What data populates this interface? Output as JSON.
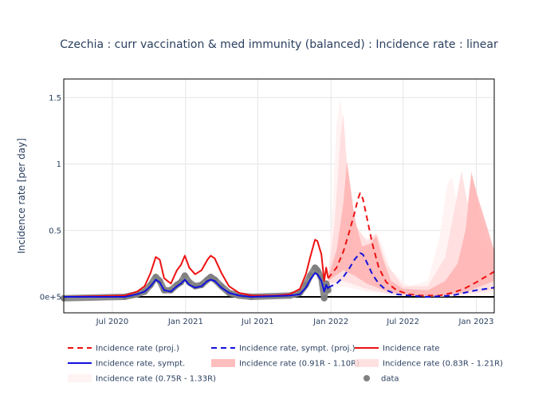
{
  "chart_data": {
    "type": "line",
    "title": "Czechia : curr vaccination & med immunity (balanced) : Incidence rate : linear",
    "ylabel": "Incidence rate [per day]",
    "xlabel": "",
    "ylim": [
      -0.12,
      1.64
    ],
    "xlim": [
      "2020-03-01",
      "2023-02-15"
    ],
    "x_ticks": [
      {
        "date": "2020-07-01",
        "label": "Jul 2020"
      },
      {
        "date": "2021-01-01",
        "label": "Jan 2021"
      },
      {
        "date": "2021-07-01",
        "label": "Jul 2021"
      },
      {
        "date": "2022-01-01",
        "label": "Jan 2022"
      },
      {
        "date": "2022-07-01",
        "label": "Jul 2022"
      },
      {
        "date": "2023-01-01",
        "label": "Jan 2023"
      }
    ],
    "y_ticks": [
      {
        "value": 0,
        "label": "0e+5"
      },
      {
        "value": 0.5,
        "label": "0.5"
      },
      {
        "value": 1,
        "label": "1"
      },
      {
        "value": 1.5,
        "label": "1.5"
      }
    ],
    "grid": true,
    "legend_position": "bottom",
    "colors": {
      "proj": "#ee1111",
      "sympt_proj": "#1111dd",
      "incidence": "#ee1111",
      "sympt": "#1111dd",
      "band_091": "#ffb3b3",
      "band_083": "#ffd9d9",
      "band_075": "#fff0f0",
      "data": "#808080",
      "zero_line": "#000000"
    },
    "series": [
      {
        "name": "Incidence rate (proj.)",
        "style": "dash",
        "points": [
          [
            "2021-12-25",
            0.14
          ],
          [
            "2022-01-15",
            0.22
          ],
          [
            "2022-02-01",
            0.34
          ],
          [
            "2022-02-15",
            0.48
          ],
          [
            "2022-03-01",
            0.63
          ],
          [
            "2022-03-10",
            0.74
          ],
          [
            "2022-03-15",
            0.78
          ],
          [
            "2022-03-22",
            0.74
          ],
          [
            "2022-04-01",
            0.6
          ],
          [
            "2022-04-15",
            0.4
          ],
          [
            "2022-05-01",
            0.22
          ],
          [
            "2022-05-20",
            0.11
          ],
          [
            "2022-06-15",
            0.05
          ],
          [
            "2022-07-15",
            0.02
          ],
          [
            "2022-08-15",
            0.01
          ],
          [
            "2022-10-01",
            0.01
          ],
          [
            "2022-11-01",
            0.03
          ],
          [
            "2022-12-01",
            0.06
          ],
          [
            "2023-01-01",
            0.11
          ],
          [
            "2023-02-15",
            0.19
          ]
        ]
      },
      {
        "name": "Incidence rate, sympt. (proj.)",
        "style": "dash",
        "points": [
          [
            "2021-12-25",
            0.07
          ],
          [
            "2022-01-15",
            0.1
          ],
          [
            "2022-02-01",
            0.15
          ],
          [
            "2022-02-15",
            0.21
          ],
          [
            "2022-03-01",
            0.28
          ],
          [
            "2022-03-15",
            0.33
          ],
          [
            "2022-03-22",
            0.32
          ],
          [
            "2022-04-01",
            0.26
          ],
          [
            "2022-04-15",
            0.17
          ],
          [
            "2022-05-01",
            0.1
          ],
          [
            "2022-05-20",
            0.05
          ],
          [
            "2022-06-15",
            0.02
          ],
          [
            "2022-07-15",
            0.01
          ],
          [
            "2022-09-01",
            0.0
          ],
          [
            "2022-11-01",
            0.01
          ],
          [
            "2022-12-01",
            0.03
          ],
          [
            "2023-01-01",
            0.05
          ],
          [
            "2023-02-15",
            0.07
          ]
        ]
      },
      {
        "name": "Incidence rate",
        "style": "solid",
        "points": [
          [
            "2020-03-01",
            0.0
          ],
          [
            "2020-08-01",
            0.01
          ],
          [
            "2020-09-01",
            0.04
          ],
          [
            "2020-09-20",
            0.08
          ],
          [
            "2020-10-05",
            0.18
          ],
          [
            "2020-10-18",
            0.3
          ],
          [
            "2020-10-28",
            0.28
          ],
          [
            "2020-11-08",
            0.14
          ],
          [
            "2020-11-25",
            0.1
          ],
          [
            "2020-12-10",
            0.2
          ],
          [
            "2020-12-20",
            0.24
          ],
          [
            "2020-12-30",
            0.31
          ],
          [
            "2021-01-10",
            0.22
          ],
          [
            "2021-01-25",
            0.17
          ],
          [
            "2021-02-10",
            0.2
          ],
          [
            "2021-02-25",
            0.28
          ],
          [
            "2021-03-05",
            0.31
          ],
          [
            "2021-03-15",
            0.29
          ],
          [
            "2021-04-01",
            0.18
          ],
          [
            "2021-04-20",
            0.08
          ],
          [
            "2021-05-15",
            0.03
          ],
          [
            "2021-06-15",
            0.01
          ],
          [
            "2021-08-15",
            0.01
          ],
          [
            "2021-09-20",
            0.02
          ],
          [
            "2021-10-15",
            0.06
          ],
          [
            "2021-10-30",
            0.17
          ],
          [
            "2021-11-10",
            0.3
          ],
          [
            "2021-11-22",
            0.43
          ],
          [
            "2021-11-28",
            0.42
          ],
          [
            "2021-12-08",
            0.32
          ],
          [
            "2021-12-15",
            0.12
          ],
          [
            "2021-12-20",
            0.22
          ],
          [
            "2021-12-25",
            0.14
          ]
        ]
      },
      {
        "name": "Incidence rate, sympt.",
        "style": "solid",
        "points": [
          [
            "2020-03-01",
            0.0
          ],
          [
            "2020-08-01",
            0.0
          ],
          [
            "2020-09-01",
            0.02
          ],
          [
            "2020-09-20",
            0.04
          ],
          [
            "2020-10-05",
            0.08
          ],
          [
            "2020-10-18",
            0.13
          ],
          [
            "2020-10-28",
            0.11
          ],
          [
            "2020-11-08",
            0.05
          ],
          [
            "2020-11-25",
            0.04
          ],
          [
            "2020-12-10",
            0.08
          ],
          [
            "2020-12-20",
            0.1
          ],
          [
            "2020-12-30",
            0.13
          ],
          [
            "2021-01-10",
            0.09
          ],
          [
            "2021-01-25",
            0.07
          ],
          [
            "2021-02-10",
            0.08
          ],
          [
            "2021-02-25",
            0.12
          ],
          [
            "2021-03-05",
            0.13
          ],
          [
            "2021-03-15",
            0.12
          ],
          [
            "2021-04-01",
            0.07
          ],
          [
            "2021-04-20",
            0.03
          ],
          [
            "2021-05-15",
            0.01
          ],
          [
            "2021-06-15",
            0.0
          ],
          [
            "2021-09-20",
            0.01
          ],
          [
            "2021-10-15",
            0.02
          ],
          [
            "2021-10-30",
            0.07
          ],
          [
            "2021-11-10",
            0.13
          ],
          [
            "2021-11-22",
            0.18
          ],
          [
            "2021-11-28",
            0.17
          ],
          [
            "2021-12-08",
            0.12
          ],
          [
            "2021-12-15",
            0.04
          ],
          [
            "2021-12-20",
            0.09
          ],
          [
            "2021-12-25",
            0.06
          ]
        ]
      },
      {
        "name": "Incidence rate (0.91R - 1.10R)",
        "style": "band",
        "upper": [
          [
            "2021-12-25",
            0.15
          ],
          [
            "2022-01-15",
            0.35
          ],
          [
            "2022-02-01",
            0.7
          ],
          [
            "2022-02-10",
            1.02
          ],
          [
            "2022-02-18",
            0.85
          ],
          [
            "2022-03-01",
            0.6
          ],
          [
            "2022-03-20",
            0.38
          ],
          [
            "2022-04-10",
            0.4
          ],
          [
            "2022-04-25",
            0.46
          ],
          [
            "2022-05-10",
            0.3
          ],
          [
            "2022-06-01",
            0.12
          ],
          [
            "2022-07-01",
            0.06
          ],
          [
            "2022-09-01",
            0.05
          ],
          [
            "2022-10-15",
            0.12
          ],
          [
            "2022-11-15",
            0.25
          ],
          [
            "2022-12-05",
            0.5
          ],
          [
            "2022-12-20",
            0.93
          ],
          [
            "2023-01-05",
            0.75
          ],
          [
            "2023-02-15",
            0.35
          ]
        ],
        "lower": [
          [
            "2021-12-25",
            0.12
          ],
          [
            "2022-02-01",
            0.2
          ],
          [
            "2022-03-01",
            0.16
          ],
          [
            "2022-04-01",
            0.1
          ],
          [
            "2022-06-01",
            0.03
          ],
          [
            "2022-08-01",
            0.01
          ],
          [
            "2022-10-01",
            0.01
          ],
          [
            "2022-12-01",
            0.03
          ],
          [
            "2023-02-15",
            0.12
          ]
        ]
      },
      {
        "name": "Incidence rate (0.83R - 1.21R)",
        "style": "band",
        "upper": [
          [
            "2021-12-25",
            0.16
          ],
          [
            "2022-01-10",
            0.55
          ],
          [
            "2022-01-25",
            1.2
          ],
          [
            "2022-02-01",
            1.38
          ],
          [
            "2022-02-10",
            1.0
          ],
          [
            "2022-03-01",
            0.55
          ],
          [
            "2022-04-01",
            0.42
          ],
          [
            "2022-04-25",
            0.48
          ],
          [
            "2022-05-20",
            0.25
          ],
          [
            "2022-07-01",
            0.08
          ],
          [
            "2022-09-01",
            0.08
          ],
          [
            "2022-10-15",
            0.3
          ],
          [
            "2022-11-10",
            0.7
          ],
          [
            "2022-11-25",
            0.95
          ],
          [
            "2022-12-10",
            0.7
          ],
          [
            "2022-12-20",
            0.95
          ],
          [
            "2023-01-10",
            0.6
          ],
          [
            "2023-02-15",
            0.3
          ]
        ],
        "lower": [
          [
            "2021-12-25",
            0.1
          ],
          [
            "2022-02-01",
            0.12
          ],
          [
            "2022-04-01",
            0.06
          ],
          [
            "2022-06-01",
            0.02
          ],
          [
            "2022-09-01",
            0.0
          ],
          [
            "2022-12-01",
            0.02
          ],
          [
            "2023-02-15",
            0.05
          ]
        ]
      },
      {
        "name": "Incidence rate (0.75R - 1.33R)",
        "style": "band",
        "upper": [
          [
            "2021-12-25",
            0.17
          ],
          [
            "2022-01-05",
            0.7
          ],
          [
            "2022-01-15",
            1.3
          ],
          [
            "2022-01-25",
            1.5
          ],
          [
            "2022-02-05",
            1.1
          ],
          [
            "2022-03-01",
            0.5
          ],
          [
            "2022-04-01",
            0.44
          ],
          [
            "2022-05-01",
            0.46
          ],
          [
            "2022-06-01",
            0.2
          ],
          [
            "2022-07-15",
            0.08
          ],
          [
            "2022-09-01",
            0.12
          ],
          [
            "2022-10-01",
            0.45
          ],
          [
            "2022-10-20",
            0.85
          ],
          [
            "2022-11-01",
            0.9
          ],
          [
            "2022-11-20",
            0.6
          ],
          [
            "2022-12-10",
            0.5
          ],
          [
            "2023-01-10",
            0.4
          ],
          [
            "2023-02-15",
            0.25
          ]
        ],
        "lower": [
          [
            "2021-12-25",
            0.08
          ],
          [
            "2022-02-01",
            0.08
          ],
          [
            "2022-04-01",
            0.04
          ],
          [
            "2022-07-01",
            0.01
          ],
          [
            "2022-10-01",
            0.0
          ],
          [
            "2023-02-15",
            0.02
          ]
        ]
      },
      {
        "name": "data",
        "style": "markers",
        "points": [
          [
            "2020-03-01",
            -0.01
          ],
          [
            "2020-08-01",
            0.0
          ],
          [
            "2020-09-01",
            0.02
          ],
          [
            "2020-09-20",
            0.04
          ],
          [
            "2020-10-05",
            0.09
          ],
          [
            "2020-10-18",
            0.15
          ],
          [
            "2020-10-28",
            0.12
          ],
          [
            "2020-11-08",
            0.05
          ],
          [
            "2020-11-25",
            0.05
          ],
          [
            "2020-12-10",
            0.09
          ],
          [
            "2020-12-20",
            0.11
          ],
          [
            "2020-12-30",
            0.16
          ],
          [
            "2021-01-10",
            0.11
          ],
          [
            "2021-01-25",
            0.08
          ],
          [
            "2021-02-10",
            0.09
          ],
          [
            "2021-02-25",
            0.13
          ],
          [
            "2021-03-05",
            0.15
          ],
          [
            "2021-03-15",
            0.13
          ],
          [
            "2021-04-01",
            0.08
          ],
          [
            "2021-04-20",
            0.03
          ],
          [
            "2021-05-15",
            0.01
          ],
          [
            "2021-06-15",
            0.0
          ],
          [
            "2021-09-20",
            0.01
          ],
          [
            "2021-10-15",
            0.03
          ],
          [
            "2021-10-30",
            0.09
          ],
          [
            "2021-11-10",
            0.16
          ],
          [
            "2021-11-22",
            0.22
          ],
          [
            "2021-11-28",
            0.2
          ],
          [
            "2021-12-08",
            0.14
          ],
          [
            "2021-12-15",
            -0.01
          ],
          [
            "2021-12-20",
            0.1
          ],
          [
            "2021-12-25",
            0.05
          ]
        ]
      }
    ]
  }
}
